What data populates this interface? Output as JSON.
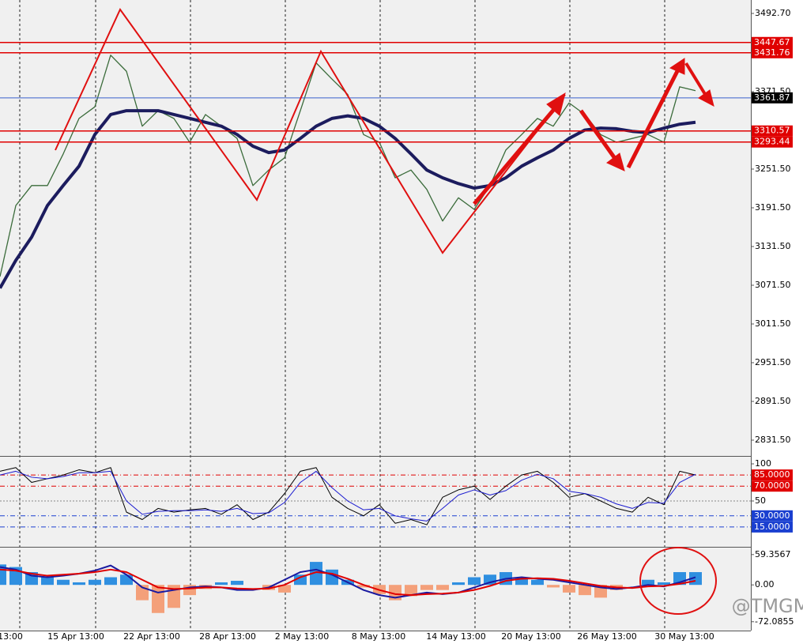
{
  "chart_data": [
    {
      "type": "line",
      "xlim": [
        0,
        47.5
      ],
      "ylim": [
        2807,
        3513.5
      ],
      "yticks": [
        {
          "value": 3492.7,
          "label": "3492.70"
        },
        {
          "value": 3371.5,
          "label": "3371.50"
        },
        {
          "value": 3251.5,
          "label": "3251.50"
        },
        {
          "value": 3191.5,
          "label": "3191.50"
        },
        {
          "value": 3131.5,
          "label": "3131.50"
        },
        {
          "value": 3071.5,
          "label": "3071.50"
        },
        {
          "value": 3011.5,
          "label": "3011.50"
        },
        {
          "value": 2951.5,
          "label": "2951.50"
        },
        {
          "value": 2891.5,
          "label": "2891.50"
        },
        {
          "value": 2831.5,
          "label": "2831.50"
        }
      ],
      "series": [
        {
          "color": "#3a6b3a",
          "width": 1.3,
          "values": [
            3085,
            3195,
            3226,
            3226,
            3275,
            3330,
            3348,
            3428,
            3403,
            3318,
            3342,
            3330,
            3293,
            3336,
            3318,
            3299,
            3226,
            3250,
            3269,
            3342,
            3416,
            3391,
            3367,
            3305,
            3293,
            3238,
            3250,
            3220,
            3171,
            3207,
            3189,
            3226,
            3281,
            3305,
            3330,
            3318,
            3354,
            3336,
            3305,
            3293,
            3299,
            3305,
            3293,
            3379,
            3373
          ]
        },
        {
          "color": "#1c1c5e",
          "width": 4,
          "values": [
            3067,
            3110,
            3146,
            3195,
            3226,
            3256,
            3305,
            3336,
            3342,
            3342,
            3342,
            3336,
            3330,
            3324,
            3318,
            3305,
            3287,
            3277,
            3281,
            3299,
            3318,
            3330,
            3334,
            3330,
            3318,
            3299,
            3275,
            3250,
            3238,
            3229,
            3222,
            3226,
            3238,
            3256,
            3269,
            3281,
            3299,
            3312,
            3315,
            3314,
            3310,
            3308,
            3315,
            3321,
            3324
          ]
        }
      ],
      "levels": [
        3447.67,
        3431.76,
        3361.87,
        3310.57,
        3293.44
      ],
      "level_colors": [
        "#e00000",
        "#e00000",
        "#3a5fcd",
        "#e00000",
        "#e00000"
      ],
      "label_colors": [
        "#e00000",
        "#e00000",
        "#000000",
        "#e00000",
        "#e00000"
      ]
    },
    {
      "type": "line",
      "xlim": [
        0,
        47.5
      ],
      "ylim": [
        -11.7,
        109.6
      ],
      "yticks": [
        100,
        {
          "value": 85,
          "label": "85.0000"
        },
        {
          "value": 70,
          "label": "70.0000"
        },
        50,
        {
          "value": 30,
          "label": "30.0000"
        },
        {
          "value": 15,
          "label": "15.0000"
        }
      ],
      "tick_colors": [
        "none",
        "#e00000",
        "#e00000",
        "#888888",
        "#1a3fd0",
        "#1a3fd0"
      ],
      "tick_boxes": [
        null,
        "#e00000",
        "#e00000",
        null,
        "#1a3fd0",
        "#1a3fd0"
      ],
      "series": [
        {
          "color": "#000000",
          "width": 1,
          "values": [
            90,
            95,
            75,
            80,
            85,
            92,
            88,
            95,
            35,
            25,
            40,
            35,
            38,
            40,
            32,
            45,
            25,
            35,
            60,
            90,
            95,
            55,
            40,
            30,
            45,
            20,
            25,
            18,
            55,
            65,
            70,
            52,
            70,
            85,
            90,
            75,
            55,
            60,
            50,
            40,
            35,
            55,
            45,
            90,
            85
          ]
        },
        {
          "color": "#1a1ad0",
          "width": 1,
          "values": [
            85,
            90,
            82,
            80,
            83,
            88,
            88,
            90,
            50,
            32,
            36,
            37,
            37,
            38,
            36,
            40,
            33,
            34,
            48,
            75,
            90,
            68,
            50,
            38,
            40,
            30,
            26,
            23,
            40,
            58,
            65,
            58,
            64,
            78,
            86,
            80,
            63,
            60,
            55,
            46,
            40,
            48,
            47,
            75,
            86
          ]
        }
      ]
    },
    {
      "type": "macd",
      "xlim": [
        0,
        47.5
      ],
      "ylim": [
        -89.4,
        73
      ],
      "yticks": [
        59.3567,
        {
          "value": 0,
          "label": "0.00"
        },
        -72.0855
      ],
      "xticks": [
        {
          "value": 0.65,
          "label": "13:00"
        },
        {
          "value": 4.8,
          "label": "15 Apr 13:00"
        },
        {
          "value": 9.6,
          "label": "22 Apr 13:00"
        },
        {
          "value": 14.4,
          "label": "28 Apr 13:00"
        },
        {
          "value": 19.1,
          "label": "2 May 13:00"
        },
        {
          "value": 23.95,
          "label": "8 May 13:00"
        },
        {
          "value": 28.85,
          "label": "14 May 13:00"
        },
        {
          "value": 33.6,
          "label": "20 May 13:00"
        },
        {
          "value": 38.4,
          "label": "26 May 13:00"
        },
        {
          "value": 43.3,
          "label": "30 May 13:00"
        }
      ],
      "histogram": {
        "color": "#2f8fe0",
        "negative_color": "#f4a07a",
        "values": [
          40,
          35,
          25,
          15,
          10,
          5,
          10,
          15,
          20,
          -30,
          -55,
          -45,
          -20,
          -8,
          5,
          8,
          0,
          -10,
          -15,
          20,
          45,
          30,
          10,
          -5,
          -18,
          -30,
          -22,
          -10,
          -10,
          5,
          15,
          20,
          25,
          15,
          10,
          -5,
          -15,
          -20,
          -25,
          -10,
          0,
          10,
          5,
          25,
          25
        ]
      },
      "series": [
        {
          "color": "#1a1aa0",
          "width": 2,
          "values": [
            35,
            30,
            18,
            15,
            18,
            22,
            28,
            38,
            20,
            -5,
            -15,
            -10,
            -5,
            -3,
            -5,
            -10,
            -10,
            -5,
            10,
            25,
            30,
            20,
            5,
            -10,
            -20,
            -25,
            -20,
            -15,
            -18,
            -15,
            -5,
            5,
            12,
            15,
            12,
            10,
            5,
            0,
            -5,
            -8,
            -5,
            0,
            -3,
            5,
            15
          ]
        },
        {
          "color": "#e00000",
          "width": 2,
          "values": [
            30,
            28,
            22,
            18,
            20,
            22,
            25,
            30,
            25,
            10,
            -5,
            -8,
            -7,
            -5,
            -5,
            -7,
            -8,
            -7,
            0,
            15,
            25,
            22,
            12,
            0,
            -10,
            -18,
            -20,
            -18,
            -17,
            -15,
            -10,
            -2,
            8,
            12,
            13,
            12,
            8,
            3,
            -2,
            -5,
            -6,
            -3,
            -2,
            2,
            8
          ]
        }
      ]
    }
  ],
  "watermark": "@TMGM"
}
